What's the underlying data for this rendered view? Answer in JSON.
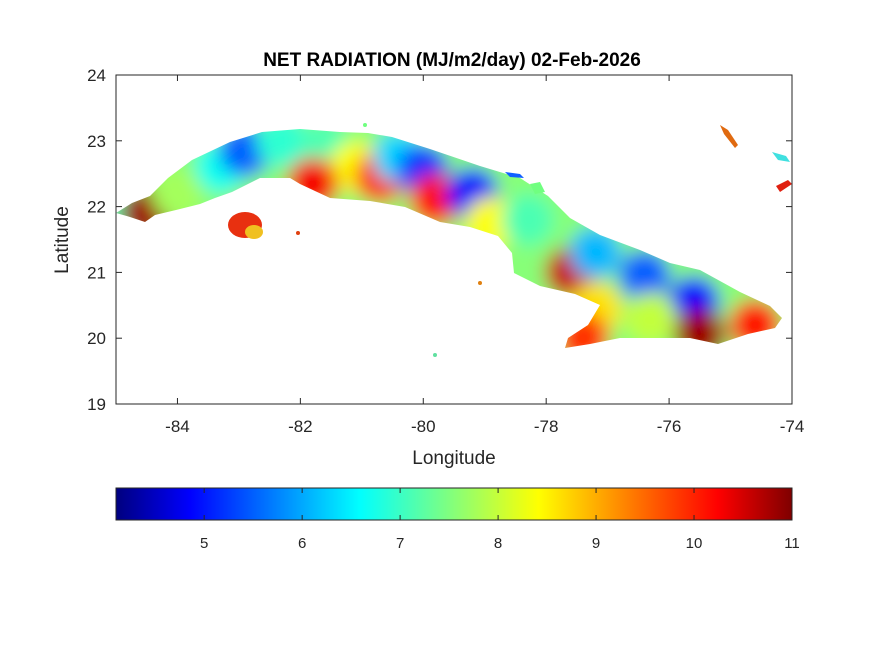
{
  "chart_data": {
    "type": "heatmap",
    "title": "NET RADIATION (MJ/m2/day) 02-Feb-2026",
    "xlabel": "Longitude",
    "ylabel": "Latitude",
    "xlim": [
      -85,
      -74
    ],
    "ylim": [
      19,
      24
    ],
    "xticks": [
      "-84",
      "-82",
      "-80",
      "-78",
      "-76",
      "-74"
    ],
    "yticks": [
      "24",
      "23",
      "22",
      "21",
      "20",
      "19"
    ],
    "xtick_values": [
      -84,
      -82,
      -80,
      -78,
      -76,
      -74
    ],
    "ytick_values": [
      24,
      23,
      22,
      21,
      20,
      19
    ],
    "colorbar": {
      "colormap": "jet",
      "range": [
        4.1,
        11
      ],
      "ticks": [
        "5",
        "6",
        "7",
        "8",
        "9",
        "10",
        "11"
      ],
      "tick_values": [
        5,
        6,
        7,
        8,
        9,
        10,
        11
      ],
      "placement": "bottom"
    },
    "regions": [
      {
        "lon": -84.8,
        "lat": 21.9,
        "value": 7.2
      },
      {
        "lon": -84.5,
        "lat": 21.9,
        "value": 10.8
      },
      {
        "lon": -84.0,
        "lat": 22.2,
        "value": 7.8
      },
      {
        "lon": -83.3,
        "lat": 22.6,
        "value": 6.8
      },
      {
        "lon": -82.9,
        "lat": 22.85,
        "value": 5.6
      },
      {
        "lon": -82.3,
        "lat": 23.0,
        "value": 7.0
      },
      {
        "lon": -81.6,
        "lat": 22.9,
        "value": 7.2
      },
      {
        "lon": -81.1,
        "lat": 22.6,
        "value": 8.4
      },
      {
        "lon": -81.8,
        "lat": 22.35,
        "value": 10.2
      },
      {
        "lon": -80.7,
        "lat": 22.45,
        "value": 9.8
      },
      {
        "lon": -80.4,
        "lat": 22.75,
        "value": 6.4
      },
      {
        "lon": -80.0,
        "lat": 22.55,
        "value": 5.3
      },
      {
        "lon": -79.8,
        "lat": 22.1,
        "value": 10.0
      },
      {
        "lon": -79.2,
        "lat": 22.2,
        "value": 5.0
      },
      {
        "lon": -78.9,
        "lat": 21.75,
        "value": 8.4
      },
      {
        "lon": -78.3,
        "lat": 21.8,
        "value": 7.2
      },
      {
        "lon": -77.6,
        "lat": 21.0,
        "value": 10.5
      },
      {
        "lon": -77.2,
        "lat": 21.3,
        "value": 6.2
      },
      {
        "lon": -76.4,
        "lat": 20.95,
        "value": 5.6
      },
      {
        "lon": -75.6,
        "lat": 20.55,
        "value": 5.0
      },
      {
        "lon": -77.2,
        "lat": 20.45,
        "value": 8.6
      },
      {
        "lon": -76.3,
        "lat": 20.3,
        "value": 8.0
      },
      {
        "lon": -77.4,
        "lat": 20.0,
        "value": 9.8
      },
      {
        "lon": -75.5,
        "lat": 20.05,
        "value": 10.8
      },
      {
        "lon": -74.6,
        "lat": 20.2,
        "value": 10.0
      },
      {
        "lon": -82.85,
        "lat": 21.7,
        "value": 10.2
      },
      {
        "lon": -75.2,
        "lat": 23.05,
        "value": 9.0
      },
      {
        "lon": -74.0,
        "lat": 22.3,
        "value": 10.5
      },
      {
        "lon": -74.2,
        "lat": 22.75,
        "value": 7.0
      }
    ]
  }
}
